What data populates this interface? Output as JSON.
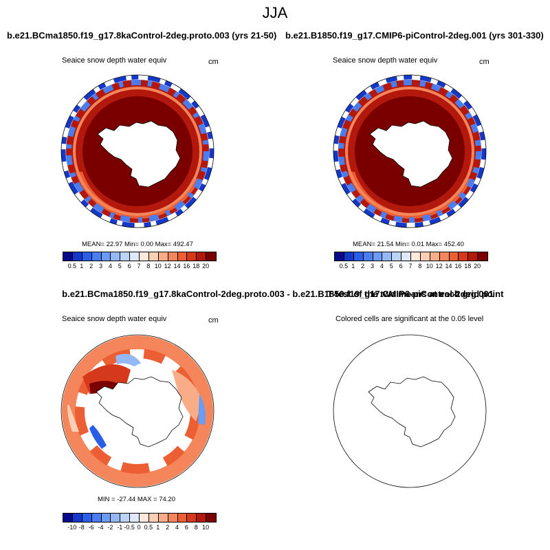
{
  "figure": {
    "title": "JJA"
  },
  "panels": {
    "p1": {
      "title": "b.e21.BCma1850.f19_g17.8kaControl-2deg.proto.003 (yrs 21-50)",
      "variable": "Seaice snow depth water equiv",
      "units": "cm",
      "stats": "MEAN=  22.97   Min=   0.00  Max= 492.47"
    },
    "p2": {
      "title": "b.e21.B1850.f19_g17.CMIP6-piControl-2deg.001 (yrs 301-330)",
      "variable": "Seaice snow depth water equiv",
      "units": "cm",
      "stats": "MEAN=  21.54   Min=   0.01  Max= 452.40"
    },
    "p3": {
      "title": "b.e21.BCma1850.f19_g17.8kaControl-2deg.proto.003 - b.e21.B1850.f19_g17.CMIP6-piControl-2deg.001",
      "variable": "Seaice snow depth water equiv",
      "units": "cm",
      "stats": "MIN = -27.44 MAX =  74.20"
    },
    "p4": {
      "title": "T-test of the two means at each grid point",
      "subtitle": "Colored cells are significant at the 0.05 level"
    }
  },
  "colorbars": {
    "absolute": {
      "labels": [
        "0.5",
        "1",
        "2",
        "3",
        "4",
        "5",
        "6",
        "7",
        "8",
        "10",
        "12",
        "14",
        "16",
        "18",
        "20"
      ],
      "colors": [
        "#08088a",
        "#1438c8",
        "#2a5ee8",
        "#4a7df0",
        "#6b9bf2",
        "#94b8f5",
        "#bcd3f8",
        "#dfe9fb",
        "#fde9dc",
        "#fbcfb3",
        "#f8ad88",
        "#f5855b",
        "#ec5f35",
        "#d6381c",
        "#b3180c",
        "#7a0000"
      ]
    },
    "difference": {
      "labels": [
        "-10",
        "-8",
        "-6",
        "-4",
        "-2",
        "-1",
        "-0.5",
        "0",
        "0.5",
        "1",
        "2",
        "4",
        "6",
        "8",
        "10"
      ],
      "colors": [
        "#08088a",
        "#1438c8",
        "#2a5ee8",
        "#4a7df0",
        "#6b9bf2",
        "#94b8f5",
        "#bcd3f8",
        "#dfe9fb",
        "#fde9dc",
        "#fbcfb3",
        "#f8ad88",
        "#f5855b",
        "#ec5f35",
        "#d6381c",
        "#b3180c",
        "#7a0000"
      ]
    }
  }
}
